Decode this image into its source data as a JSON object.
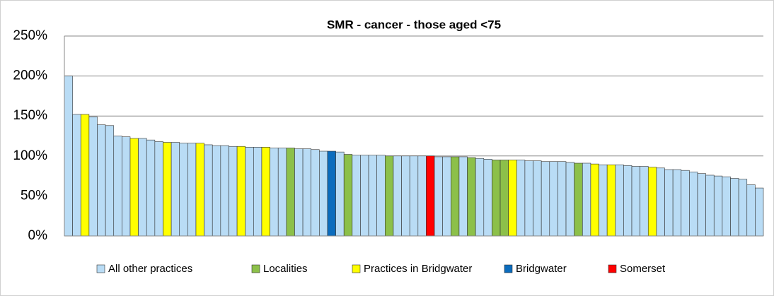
{
  "chart_data": {
    "type": "bar",
    "title": "SMR - cancer - those aged <75",
    "categories": [
      null,
      null,
      null,
      null,
      null,
      null,
      null,
      null,
      null,
      null,
      null,
      null,
      null,
      null,
      null,
      null,
      null,
      null,
      null,
      null,
      null,
      null,
      null,
      null,
      null,
      null,
      null,
      null,
      null,
      null,
      null,
      null,
      null,
      null,
      null,
      null,
      null,
      null,
      null,
      null,
      null,
      null,
      null,
      null,
      null,
      null,
      null,
      null,
      null,
      null,
      null,
      null,
      null,
      null,
      null,
      null,
      null,
      null,
      null,
      null,
      null,
      null,
      null,
      null,
      null,
      null,
      null,
      null,
      null,
      null,
      null,
      null,
      null,
      null,
      null,
      null,
      null,
      null,
      null,
      null,
      null,
      null,
      null,
      null,
      null
    ],
    "series": [
      {
        "name": "All other practices",
        "color": "#b9dcf5",
        "values": [
          200,
          152,
          null,
          149,
          139,
          138,
          125,
          124,
          null,
          122,
          120,
          118,
          null,
          117,
          116,
          116,
          null,
          114,
          113,
          113,
          112,
          null,
          111,
          111,
          null,
          110,
          110,
          null,
          109,
          109,
          108,
          106,
          null,
          105,
          null,
          101,
          101,
          101,
          101,
          null,
          100,
          100,
          100,
          100,
          null,
          99,
          99,
          null,
          99,
          null,
          97,
          96,
          null,
          null,
          null,
          95,
          94,
          94,
          93,
          93,
          93,
          92,
          null,
          91,
          null,
          89,
          null,
          89,
          88,
          87,
          87,
          null,
          85,
          83,
          83,
          82,
          80,
          78,
          76,
          75,
          74,
          72,
          71,
          64,
          60
        ]
      },
      {
        "name": "Localities",
        "color": "#8cc04a",
        "values": [
          null,
          null,
          null,
          null,
          null,
          null,
          null,
          null,
          null,
          null,
          null,
          null,
          null,
          null,
          null,
          null,
          null,
          null,
          null,
          null,
          null,
          null,
          null,
          null,
          null,
          null,
          null,
          110,
          null,
          null,
          null,
          null,
          null,
          null,
          102,
          null,
          null,
          null,
          null,
          100,
          null,
          null,
          null,
          null,
          null,
          null,
          null,
          99,
          null,
          98,
          null,
          null,
          95,
          95,
          null,
          null,
          null,
          null,
          null,
          null,
          null,
          null,
          91,
          null,
          null,
          null,
          null,
          null,
          null,
          null,
          null,
          null,
          null,
          null,
          null,
          null,
          null,
          null,
          null,
          null,
          null,
          null,
          null,
          null,
          null
        ]
      },
      {
        "name": "Practices in Bridgwater",
        "color": "#ffff00",
        "values": [
          null,
          null,
          152,
          null,
          null,
          null,
          null,
          null,
          122,
          null,
          null,
          null,
          117,
          null,
          null,
          null,
          116,
          null,
          null,
          null,
          null,
          112,
          null,
          null,
          111,
          null,
          null,
          null,
          null,
          null,
          null,
          null,
          null,
          null,
          null,
          null,
          null,
          null,
          null,
          null,
          null,
          null,
          null,
          null,
          null,
          null,
          null,
          null,
          null,
          null,
          null,
          null,
          null,
          null,
          95,
          null,
          null,
          null,
          null,
          null,
          null,
          null,
          null,
          null,
          90,
          null,
          89,
          null,
          null,
          null,
          null,
          86,
          null,
          null,
          null,
          null,
          null,
          null,
          null,
          null,
          null,
          null,
          null,
          null,
          null
        ]
      },
      {
        "name": "Bridgwater",
        "color": "#0b6cbd",
        "values": [
          null,
          null,
          null,
          null,
          null,
          null,
          null,
          null,
          null,
          null,
          null,
          null,
          null,
          null,
          null,
          null,
          null,
          null,
          null,
          null,
          null,
          null,
          null,
          null,
          null,
          null,
          null,
          null,
          null,
          null,
          null,
          null,
          106,
          null,
          null,
          null,
          null,
          null,
          null,
          null,
          null,
          null,
          null,
          null,
          null,
          null,
          null,
          null,
          null,
          null,
          null,
          null,
          null,
          null,
          null,
          null,
          null,
          null,
          null,
          null,
          null,
          null,
          null,
          null,
          null,
          null,
          null,
          null,
          null,
          null,
          null,
          null,
          null,
          null,
          null,
          null,
          null,
          null,
          null,
          null,
          null,
          null,
          null,
          null,
          null
        ]
      },
      {
        "name": "Somerset",
        "color": "#ff0000",
        "values": [
          null,
          null,
          null,
          null,
          null,
          null,
          null,
          null,
          null,
          null,
          null,
          null,
          null,
          null,
          null,
          null,
          null,
          null,
          null,
          null,
          null,
          null,
          null,
          null,
          null,
          null,
          null,
          null,
          null,
          null,
          null,
          null,
          null,
          null,
          null,
          null,
          null,
          null,
          null,
          null,
          null,
          null,
          null,
          null,
          100,
          null,
          null,
          null,
          null,
          null,
          null,
          null,
          null,
          null,
          null,
          null,
          null,
          null,
          null,
          null,
          null,
          null,
          null,
          null,
          null,
          null,
          null,
          null,
          null,
          null,
          null,
          null,
          null,
          null,
          null,
          null,
          null,
          null,
          null,
          null,
          null,
          null,
          null,
          null,
          null
        ]
      }
    ],
    "ylim": [
      0,
      250
    ],
    "yticks": [
      {
        "value": 0,
        "label": "0%"
      },
      {
        "value": 50,
        "label": "50%"
      },
      {
        "value": 100,
        "label": "100%"
      },
      {
        "value": 150,
        "label": "150%"
      },
      {
        "value": 200,
        "label": "200%"
      },
      {
        "value": 250,
        "label": "250%"
      }
    ],
    "grid": true,
    "legend": "bottom"
  }
}
